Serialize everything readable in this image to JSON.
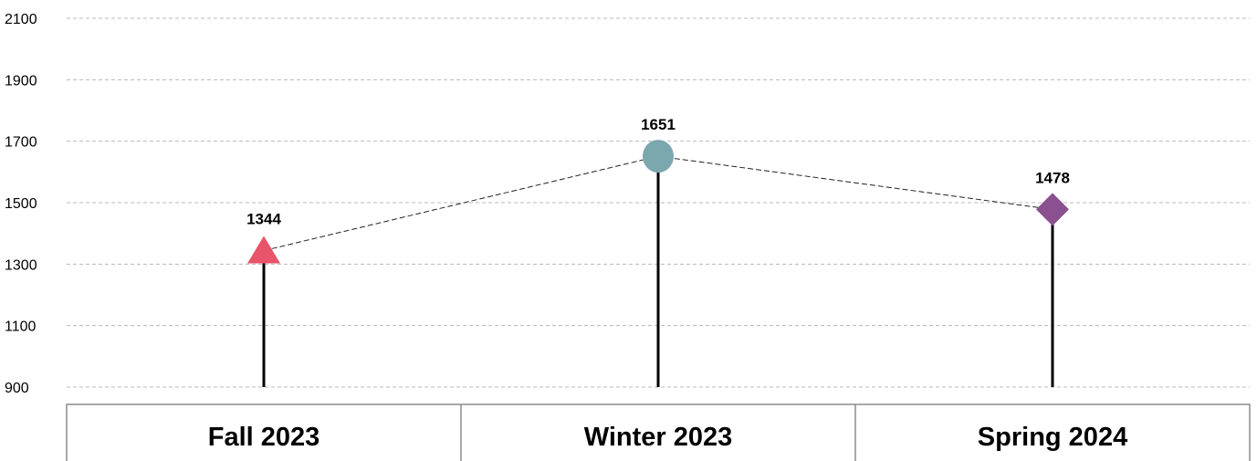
{
  "chart_data": {
    "type": "line",
    "categories": [
      "Fall 2023",
      "Winter 2023",
      "Spring 2024"
    ],
    "series": [
      {
        "values": [
          1344,
          1651,
          1478
        ],
        "markers": [
          "triangle",
          "circle",
          "diamond"
        ],
        "marker_colors": [
          "#e8546a",
          "#7ba7ae",
          "#8b5090"
        ]
      }
    ],
    "data_labels": [
      "1344",
      "1651",
      "1478"
    ],
    "y_ticks": [
      900,
      1100,
      1300,
      1500,
      1700,
      1900,
      2100
    ],
    "y_tick_labels": [
      "900",
      "1100",
      "1300",
      "1500",
      "1700",
      "1900",
      "2100"
    ],
    "ylim": [
      900,
      2100
    ],
    "grid": true,
    "legend": "none",
    "title": "",
    "xlabel": "",
    "ylabel": ""
  }
}
